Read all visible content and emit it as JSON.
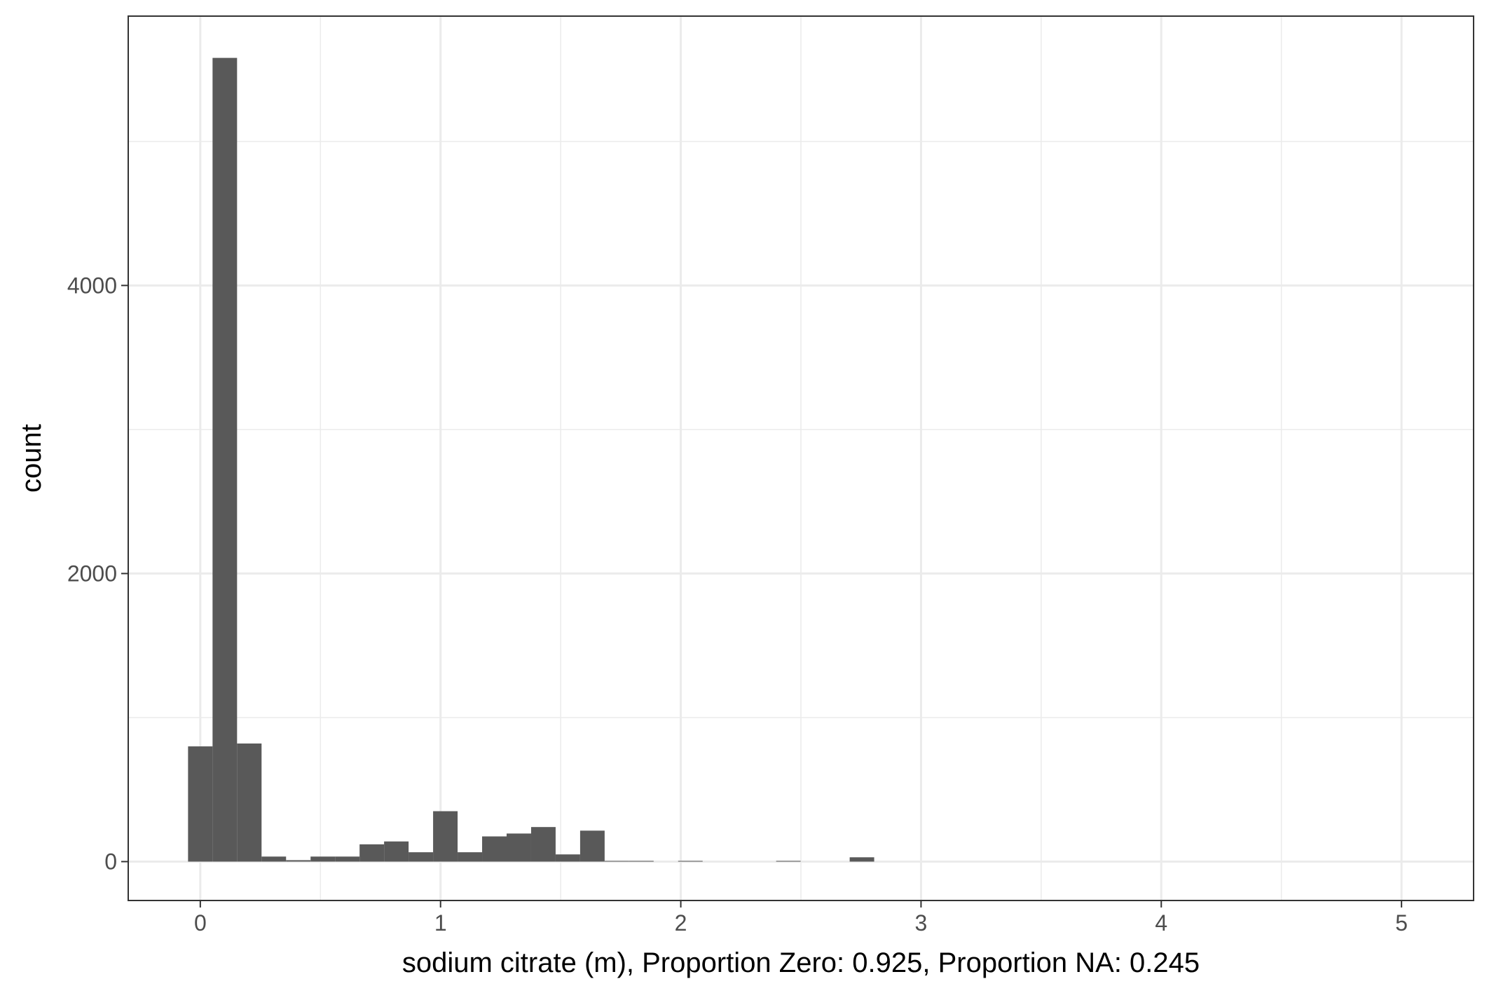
{
  "chart_data": {
    "type": "bar",
    "xlabel": "sodium citrate (m), Proportion Zero: 0.925, Proportion NA: 0.245",
    "ylabel": "count",
    "xlim": [
      -0.3,
      5.3
    ],
    "ylim": [
      -270,
      5870
    ],
    "x_ticks": [
      0,
      1,
      2,
      3,
      4,
      5
    ],
    "y_ticks": [
      0,
      2000,
      4000
    ],
    "grid": true,
    "bin_width": 0.102,
    "bins": [
      {
        "x": 0.0,
        "count": 800
      },
      {
        "x": 0.102,
        "count": 5580
      },
      {
        "x": 0.204,
        "count": 820
      },
      {
        "x": 0.306,
        "count": 35
      },
      {
        "x": 0.408,
        "count": 10
      },
      {
        "x": 0.51,
        "count": 35
      },
      {
        "x": 0.612,
        "count": 35
      },
      {
        "x": 0.714,
        "count": 120
      },
      {
        "x": 0.816,
        "count": 140
      },
      {
        "x": 0.918,
        "count": 65
      },
      {
        "x": 1.02,
        "count": 350
      },
      {
        "x": 1.122,
        "count": 65
      },
      {
        "x": 1.224,
        "count": 175
      },
      {
        "x": 1.326,
        "count": 195
      },
      {
        "x": 1.428,
        "count": 240
      },
      {
        "x": 1.53,
        "count": 50
      },
      {
        "x": 1.632,
        "count": 215
      },
      {
        "x": 1.734,
        "count": 5
      },
      {
        "x": 1.836,
        "count": 5
      },
      {
        "x": 2.04,
        "count": 5
      },
      {
        "x": 2.448,
        "count": 5
      },
      {
        "x": 2.754,
        "count": 30
      }
    ],
    "bar_color": "#595959",
    "grid_color": "#ebebeb",
    "panel_border_color": "#333333"
  }
}
